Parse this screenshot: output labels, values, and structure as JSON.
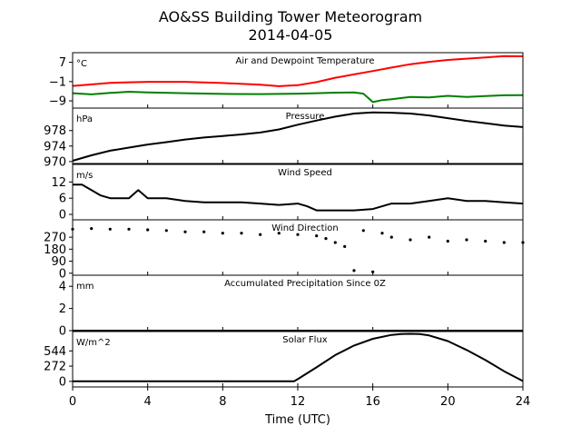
{
  "figure": {
    "title": "AO&SS Building Tower Meteorogram",
    "subtitle": "2014-04-05",
    "xlabel": "Time (UTC)",
    "xticks": [
      0,
      4,
      8,
      12,
      16,
      20,
      24
    ]
  },
  "chart_data": [
    {
      "type": "line",
      "title": "Air and Dewpoint Temperature",
      "unit": "°C",
      "xlim": [
        0,
        24
      ],
      "ylim": [
        -12,
        11
      ],
      "yticks": [
        7,
        -1,
        -9
      ],
      "ytick_labels": [
        "7",
        "−1",
        "−9"
      ],
      "series": [
        {
          "color": "#ff0000",
          "x": [
            0,
            2,
            4,
            6,
            8,
            10,
            11,
            12,
            13,
            14,
            15,
            16,
            17,
            18,
            19,
            20,
            21,
            22,
            23,
            24
          ],
          "y": [
            -2.8,
            -1.5,
            -1.1,
            -1.1,
            -1.6,
            -2.3,
            -2.9,
            -2.5,
            -1.2,
            0.6,
            2.0,
            3.4,
            4.8,
            6.2,
            7.2,
            8.0,
            8.5,
            9.0,
            9.6,
            9.5
          ]
        },
        {
          "color": "#008000",
          "x": [
            0,
            1,
            2,
            3,
            4,
            6,
            8,
            10,
            12,
            13,
            14,
            15,
            15.5,
            16,
            16.5,
            17,
            18,
            19,
            20,
            21,
            22,
            23,
            24
          ],
          "y": [
            -5.8,
            -6.3,
            -5.7,
            -5.2,
            -5.5,
            -5.8,
            -6.1,
            -6.2,
            -6.0,
            -5.8,
            -5.6,
            -5.5,
            -6.0,
            -9.5,
            -8.7,
            -8.3,
            -7.4,
            -7.6,
            -6.9,
            -7.4,
            -7.0,
            -6.7,
            -6.6
          ]
        }
      ]
    },
    {
      "type": "line",
      "title": "Pressure",
      "unit": "hPa",
      "xlim": [
        0,
        24
      ],
      "ylim": [
        969.5,
        983.8
      ],
      "yticks": [
        978,
        974,
        970
      ],
      "ytick_labels": [
        "978",
        "974",
        "970"
      ],
      "series": [
        {
          "color": "#000000",
          "x": [
            0,
            1,
            2,
            3,
            4,
            5,
            6,
            7,
            8,
            9,
            10,
            11,
            12,
            13,
            14,
            15,
            16,
            17,
            18,
            19,
            20,
            21,
            22,
            23,
            24
          ],
          "y": [
            970.2,
            971.6,
            972.8,
            973.6,
            974.4,
            975.0,
            975.7,
            976.2,
            976.6,
            977.0,
            977.5,
            978.3,
            979.5,
            980.6,
            981.6,
            982.4,
            982.7,
            982.6,
            982.4,
            981.9,
            981.2,
            980.5,
            979.9,
            979.3,
            978.9
          ]
        }
      ]
    },
    {
      "type": "line",
      "title": "Wind Speed",
      "unit": "m/s",
      "xlim": [
        0,
        24
      ],
      "ylim": [
        -2,
        18.5
      ],
      "yticks": [
        12,
        6,
        0
      ],
      "ytick_labels": [
        "12",
        "6",
        "0"
      ],
      "series": [
        {
          "color": "#000000",
          "x": [
            0,
            0.5,
            1,
            1.5,
            2,
            3,
            3.5,
            4,
            5,
            6,
            7,
            8,
            9,
            10,
            11,
            12,
            12.5,
            13,
            14,
            15,
            16,
            17,
            18,
            19,
            20,
            21,
            22,
            23,
            24
          ],
          "y": [
            11,
            11,
            9,
            7,
            6,
            6,
            9,
            6,
            6,
            5,
            4.5,
            4.5,
            4.5,
            4,
            3.5,
            4,
            3,
            1.5,
            1.5,
            1.5,
            2,
            4,
            4,
            5,
            6,
            5,
            5,
            4.5,
            4
          ]
        }
      ]
    },
    {
      "type": "scatter",
      "title": "Wind Direction",
      "unit": "",
      "xlim": [
        0,
        24
      ],
      "ylim": [
        -15,
        400
      ],
      "yticks": [
        270,
        180,
        90,
        0
      ],
      "ytick_labels": [
        "270",
        "180",
        "90",
        "0"
      ],
      "series": [
        {
          "color": "#000000",
          "x": [
            0,
            1,
            2,
            3,
            4,
            5,
            6,
            7,
            8,
            9,
            10,
            11,
            12,
            13,
            13.5,
            14,
            14.5,
            15,
            15.5,
            16,
            16.5,
            17,
            18,
            19,
            20,
            21,
            22,
            23,
            24
          ],
          "y": [
            330,
            335,
            330,
            330,
            325,
            320,
            310,
            310,
            300,
            300,
            290,
            300,
            290,
            280,
            260,
            230,
            200,
            20,
            320,
            10,
            300,
            270,
            250,
            270,
            240,
            250,
            240,
            230,
            230
          ]
        }
      ]
    },
    {
      "type": "line",
      "title": "Accumulated Precipitation Since 0Z",
      "unit": "mm",
      "xlim": [
        0,
        24
      ],
      "ylim": [
        0,
        5
      ],
      "yticks": [
        4,
        2,
        0
      ],
      "ytick_labels": [
        "4",
        "2",
        "0"
      ],
      "series": [
        {
          "color": "#000000",
          "x": [
            0,
            24
          ],
          "y": [
            0,
            0
          ]
        }
      ]
    },
    {
      "type": "line",
      "title": "Solar Flux",
      "unit": "W/m^2",
      "xlim": [
        0,
        24
      ],
      "ylim": [
        -100,
        890
      ],
      "yticks": [
        544,
        272,
        0
      ],
      "ytick_labels": [
        "544",
        "272",
        "0"
      ],
      "series": [
        {
          "color": "#000000",
          "x": [
            0,
            11.8,
            12,
            13,
            14,
            15,
            16,
            17,
            17.5,
            18,
            18.5,
            19,
            20,
            21,
            22,
            23,
            24
          ],
          "y": [
            0,
            0,
            40,
            250,
            470,
            640,
            760,
            830,
            845,
            850,
            845,
            820,
            720,
            560,
            380,
            180,
            5
          ]
        }
      ]
    }
  ]
}
